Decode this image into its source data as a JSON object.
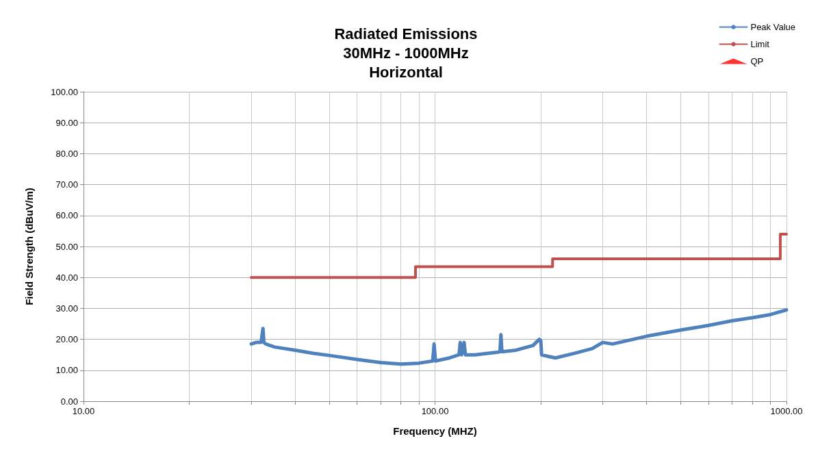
{
  "chart_data": {
    "type": "line",
    "title": "Radiated Emissions\n30MHz - 1000MHz\nHorizontal",
    "xlabel": "Frequency (MHZ)",
    "ylabel": "Field Strength (dBuV/m)",
    "log": "x",
    "xlim": [
      10,
      1000
    ],
    "xticks": [
      {
        "value": 10,
        "label": "10.00"
      },
      {
        "value": 20,
        "label": null
      },
      {
        "value": 30,
        "label": null
      },
      {
        "value": 40,
        "label": null
      },
      {
        "value": 50,
        "label": null
      },
      {
        "value": 60,
        "label": null
      },
      {
        "value": 70,
        "label": null
      },
      {
        "value": 80,
        "label": null
      },
      {
        "value": 90,
        "label": null
      },
      {
        "value": 100,
        "label": "100.00"
      },
      {
        "value": 200,
        "label": null
      },
      {
        "value": 300,
        "label": null
      },
      {
        "value": 400,
        "label": null
      },
      {
        "value": 500,
        "label": null
      },
      {
        "value": 600,
        "label": null
      },
      {
        "value": 700,
        "label": null
      },
      {
        "value": 800,
        "label": null
      },
      {
        "value": 900,
        "label": null
      },
      {
        "value": 1000,
        "label": "1000.00"
      }
    ],
    "ylim": [
      0,
      100
    ],
    "yticks": [
      {
        "value": 0,
        "label": "0.00"
      },
      {
        "value": 10,
        "label": "10.00"
      },
      {
        "value": 20,
        "label": "20.00"
      },
      {
        "value": 30,
        "label": "30.00"
      },
      {
        "value": 40,
        "label": "40.00"
      },
      {
        "value": 50,
        "label": "50.00"
      },
      {
        "value": 60,
        "label": "60.00"
      },
      {
        "value": 70,
        "label": "70.00"
      },
      {
        "value": 80,
        "label": "80.00"
      },
      {
        "value": 90,
        "label": "90.00"
      },
      {
        "value": 100,
        "label": "100.00"
      }
    ],
    "grid": true,
    "legend": "top right",
    "marker": "none",
    "line_style": "solid",
    "series": [
      {
        "name": "Peak Value",
        "color": "#4f81bd",
        "x": [
          30,
          31,
          32,
          32.4,
          32.6,
          33,
          35,
          40,
          45,
          50,
          60,
          70,
          80,
          90,
          98.5,
          99.4,
          100.3,
          110,
          117,
          118,
          119,
          121,
          122,
          130,
          150,
          153,
          154,
          155,
          170,
          190,
          198,
          200,
          201,
          210,
          220,
          250,
          280,
          300,
          320,
          350,
          400,
          500,
          600,
          700,
          800,
          900,
          1000
        ],
        "values": [
          18.5,
          19,
          19,
          23.5,
          19,
          18.5,
          17.5,
          16.5,
          15.5,
          14.8,
          13.5,
          12.5,
          12,
          12.3,
          13,
          18.5,
          13,
          14,
          15,
          19,
          15,
          19,
          15,
          15,
          15.8,
          16,
          21.5,
          16,
          16.5,
          18,
          20,
          19.5,
          15,
          14.5,
          14,
          15.5,
          17,
          19,
          18.5,
          19.5,
          21,
          23,
          24.5,
          26,
          27,
          28,
          29.5
        ]
      },
      {
        "name": "Limit",
        "color": "#c0504d",
        "type": "step",
        "x": [
          30,
          88,
          216,
          960,
          1000
        ],
        "values": [
          40,
          43.5,
          46,
          54,
          54
        ]
      },
      {
        "name": "QP",
        "color": "#ff0000",
        "type": "scatter",
        "marker": "triangle"
      }
    ]
  }
}
